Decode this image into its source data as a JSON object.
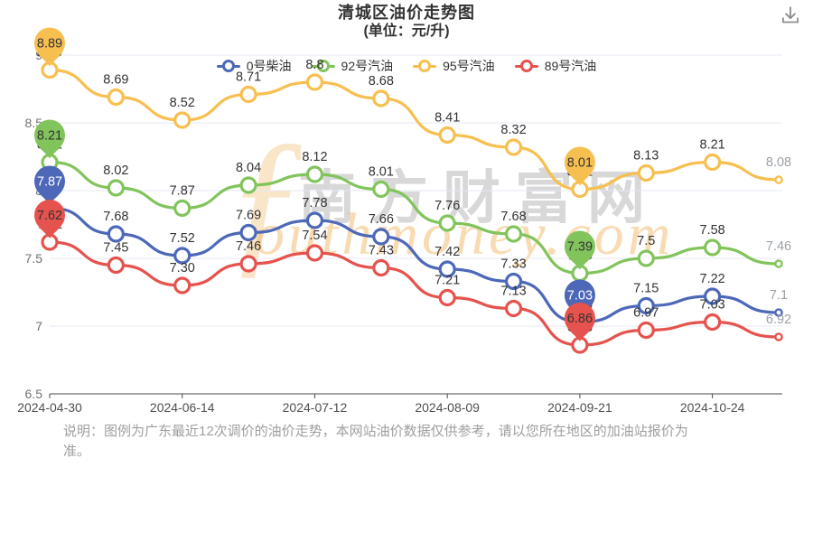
{
  "title": {
    "line1": "清城区油价走势图",
    "line2": "(单位：元/升)"
  },
  "toolbar": {
    "download_icon": "download"
  },
  "legend": {
    "items": [
      {
        "label": "0号柴油",
        "color": "#4d68b8"
      },
      {
        "label": "92号汽油",
        "color": "#82c45c"
      },
      {
        "label": "95号汽油",
        "color": "#f7bf4f"
      },
      {
        "label": "89号汽油",
        "color": "#e6524d"
      }
    ]
  },
  "chart_data": {
    "type": "line",
    "title": "清城区油价走势图 (单位：元/升)",
    "n_points": 12,
    "x_tick_labels": [
      "2024-04-30",
      "2024-06-14",
      "2024-07-12",
      "2024-08-09",
      "2024-09-21",
      "2024-10-24"
    ],
    "x_tick_indices": [
      0,
      2,
      4,
      6,
      8,
      10
    ],
    "ylim": [
      6.5,
      9
    ],
    "yticks": [
      6.5,
      7,
      7.5,
      8,
      8.5,
      9
    ],
    "ytick_labels": [
      "6.5",
      "7",
      "7.5",
      "8",
      "8.5",
      "9"
    ],
    "grid": true,
    "legend_position": "top",
    "series": [
      {
        "name": "0号柴油",
        "color": "#4d68b8",
        "pin_text_color": "#ffffff",
        "values": [
          7.87,
          7.68,
          7.52,
          7.69,
          7.78,
          7.66,
          7.42,
          7.33,
          7.03,
          7.15,
          7.22,
          7.1
        ],
        "labels": [
          "7.87",
          "7.68",
          "7.52",
          "7.69",
          "7.78",
          "7.66",
          "7.42",
          "7.33",
          "7.03",
          "7.15",
          "7.22",
          "7.1"
        ]
      },
      {
        "name": "92号汽油",
        "color": "#82c45c",
        "pin_text_color": "#333333",
        "values": [
          8.21,
          8.02,
          7.87,
          8.04,
          8.12,
          8.01,
          7.76,
          7.68,
          7.39,
          7.5,
          7.58,
          7.46
        ],
        "labels": [
          "8.21",
          "8.02",
          "7.87",
          "8.04",
          "8.12",
          "8.01",
          "7.76",
          "7.68",
          "7.39",
          "7.5",
          "7.58",
          "7.46"
        ]
      },
      {
        "name": "95号汽油",
        "color": "#f7bf4f",
        "pin_text_color": "#333333",
        "values": [
          8.89,
          8.69,
          8.52,
          8.71,
          8.8,
          8.68,
          8.41,
          8.32,
          8.01,
          8.13,
          8.21,
          8.08
        ],
        "labels": [
          "8.89",
          "8.69",
          "8.52",
          "8.71",
          "8.8",
          "8.68",
          "8.41",
          "8.32",
          "8.01",
          "8.13",
          "8.21",
          "8.08"
        ]
      },
      {
        "name": "89号汽油",
        "color": "#e6524d",
        "pin_text_color": "#333333",
        "values": [
          7.62,
          7.45,
          7.3,
          7.46,
          7.54,
          7.43,
          7.21,
          7.13,
          6.86,
          6.97,
          7.03,
          6.92
        ],
        "labels": [
          "7.62",
          "7.45",
          "7.30",
          "7.46",
          "7.54",
          "7.43",
          "7.21",
          "7.13",
          "6.86",
          "6.97",
          "7.03",
          "6.92"
        ]
      }
    ],
    "mark_points": {
      "max_index": 0,
      "min_index": 8
    },
    "label_color": "#333333",
    "last_label_color": "#9aa0a6",
    "colors": {
      "grid": "#e4e9f3",
      "axis": "#4a4a4a",
      "x_label": "#4f4f4f",
      "y_label": "#717171"
    }
  },
  "watermark": {
    "swoosh": "ƒ",
    "cn": "南方财富网",
    "en": "outhmoney.com"
  },
  "note": {
    "line1": "说明：图例为广东最近12次调价的油价走势，本网站油价数据仅供参考，请以您所在地区的加油站报价为",
    "line2": "准。"
  }
}
